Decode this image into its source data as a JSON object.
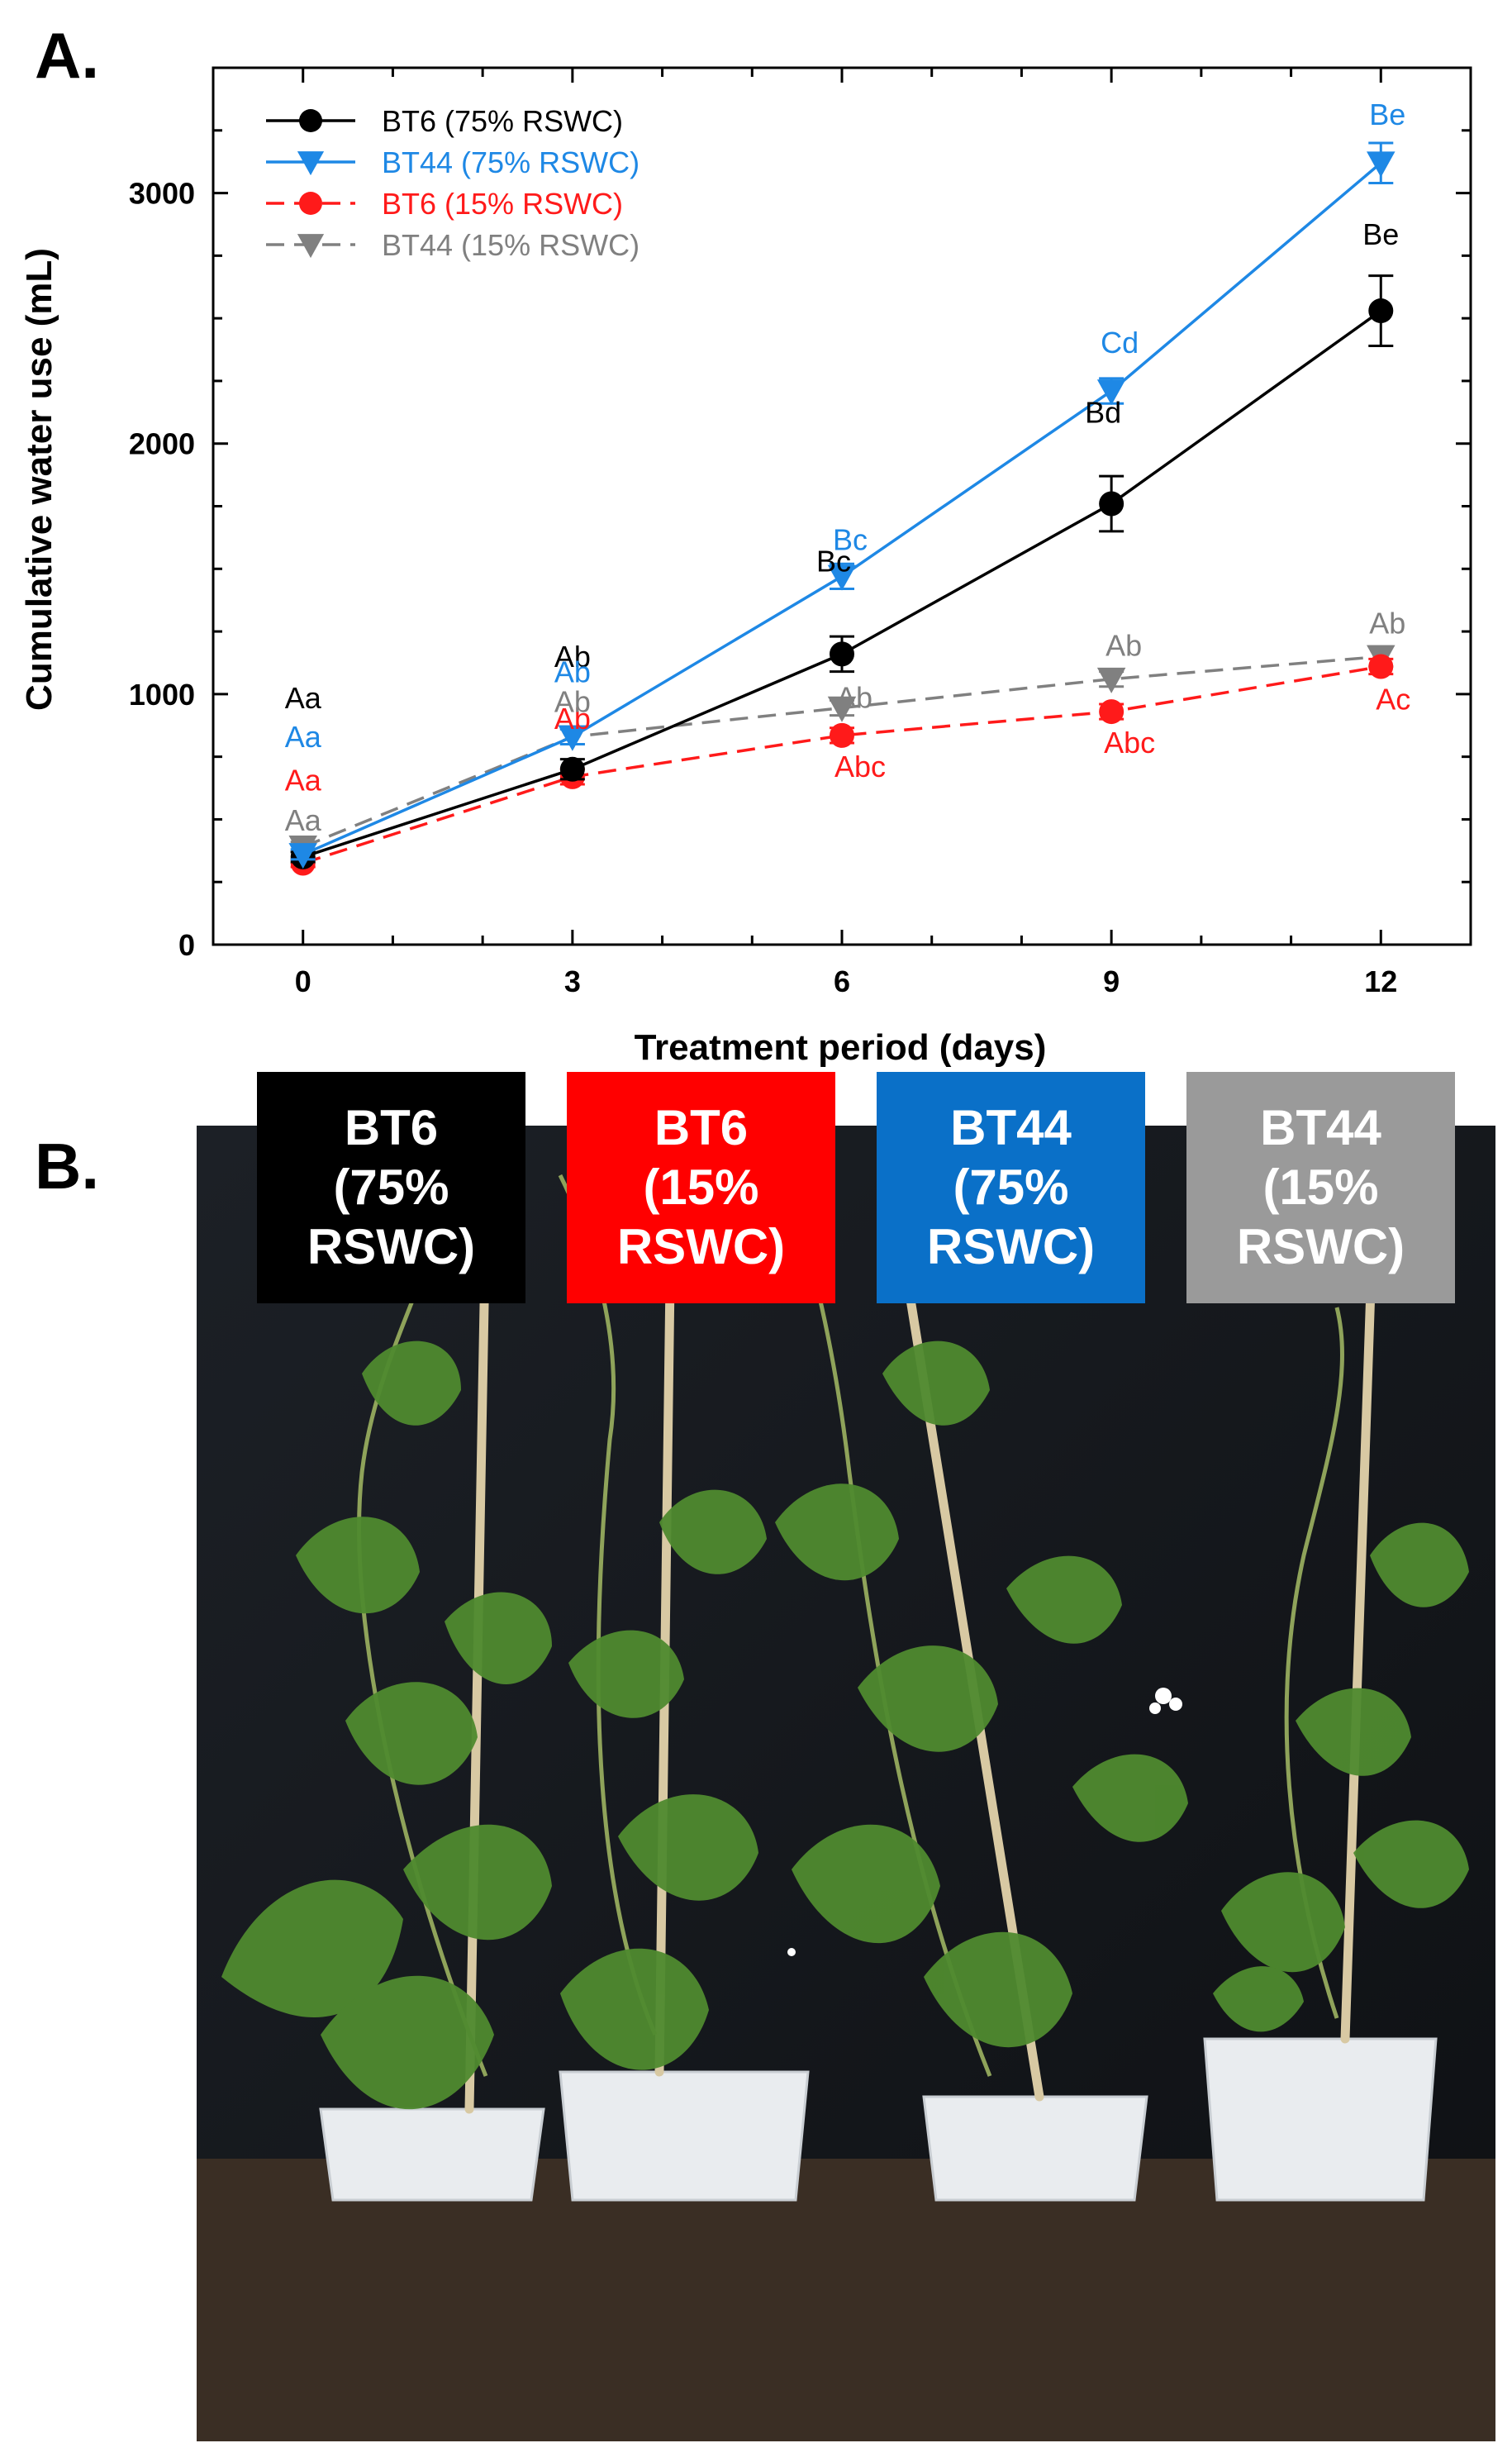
{
  "panels": {
    "a_label": "A.",
    "b_label": "B."
  },
  "colors": {
    "bt6_75": "#000000",
    "bt44_75": "#1e88e5",
    "bt6_15": "#ff1a1a",
    "bt44_15": "#808080",
    "tag_bt6_75": "#000000",
    "tag_bt6_15": "#ff0000",
    "tag_bt44_75": "#0a70c8",
    "tag_bt44_15": "#9a9a9a"
  },
  "chart_data": {
    "type": "line",
    "title": "",
    "xlabel": "Treatment period (days)",
    "ylabel": "Cumulative water use (mL)",
    "x": [
      0,
      3,
      6,
      9,
      12
    ],
    "xticks": [
      "0",
      "3",
      "6",
      "9",
      "12"
    ],
    "xlim": [
      -1,
      13
    ],
    "ylim": [
      0,
      3500
    ],
    "yticks": [
      0,
      1000,
      2000,
      3000
    ],
    "ytick_labels": [
      "0",
      "1000",
      "2000",
      "3000"
    ],
    "legend_position": "top-left",
    "grid": false,
    "series": [
      {
        "name": "BT6 (75% RSWC)",
        "color": "#000000",
        "marker": "circle",
        "dash": false,
        "values": [
          350,
          700,
          1160,
          1760,
          2530
        ],
        "errors": [
          20,
          40,
          70,
          110,
          140
        ],
        "labels": [
          "Aa",
          "Ab",
          "Bc",
          "Bd",
          "Be"
        ]
      },
      {
        "name": "BT44 (75% RSWC)",
        "color": "#1e88e5",
        "marker": "triangle-down",
        "dash": false,
        "values": [
          360,
          830,
          1470,
          2210,
          3120
        ],
        "errors": [
          20,
          30,
          50,
          50,
          80
        ],
        "labels": [
          "Aa",
          "Ab",
          "Bc",
          "Cd",
          "Be"
        ]
      },
      {
        "name": "BT6 (15% RSWC)",
        "color": "#ff1a1a",
        "marker": "circle",
        "dash": true,
        "values": [
          325,
          670,
          835,
          930,
          1110
        ],
        "errors": [
          15,
          30,
          30,
          30,
          30
        ],
        "labels": [
          "Aa",
          "Ab",
          "Abc",
          "Abc",
          "Ac"
        ]
      },
      {
        "name": "BT44 (15% RSWC)",
        "color": "#808080",
        "marker": "triangle-down",
        "dash": true,
        "values": [
          390,
          830,
          945,
          1060,
          1150
        ],
        "errors": [
          20,
          30,
          30,
          30,
          40
        ],
        "labels": [
          "Aa",
          "Ab",
          "Ab",
          "Ab",
          "Ab"
        ]
      }
    ]
  },
  "photo_tags": [
    {
      "line1": "BT6",
      "line2": "(75%",
      "line3": "RSWC)"
    },
    {
      "line1": "BT6",
      "line2": "(15%",
      "line3": "RSWC)"
    },
    {
      "line1": "BT44",
      "line2": "(75%",
      "line3": "RSWC)"
    },
    {
      "line1": "BT44",
      "line2": "(15%",
      "line3": "RSWC)"
    }
  ]
}
